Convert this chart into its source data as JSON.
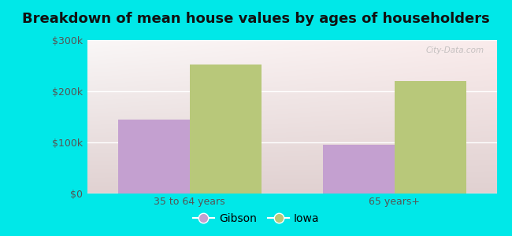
{
  "title": "Breakdown of mean house values by ages of householders",
  "categories": [
    "35 to 64 years",
    "65 years+"
  ],
  "series": [
    {
      "name": "Gibson",
      "values": [
        145000,
        95000
      ],
      "color": "#c4a0d0"
    },
    {
      "name": "Iowa",
      "values": [
        252000,
        220000
      ],
      "color": "#b8c87a"
    }
  ],
  "ylim": [
    0,
    300000
  ],
  "yticks": [
    0,
    100000,
    200000,
    300000
  ],
  "ytick_labels": [
    "$0",
    "$100k",
    "$200k",
    "$300k"
  ],
  "outer_bg": "#00e8e8",
  "title_fontsize": 13,
  "legend_fontsize": 10,
  "tick_fontsize": 9,
  "bar_width": 0.35,
  "watermark": "City-Data.com"
}
